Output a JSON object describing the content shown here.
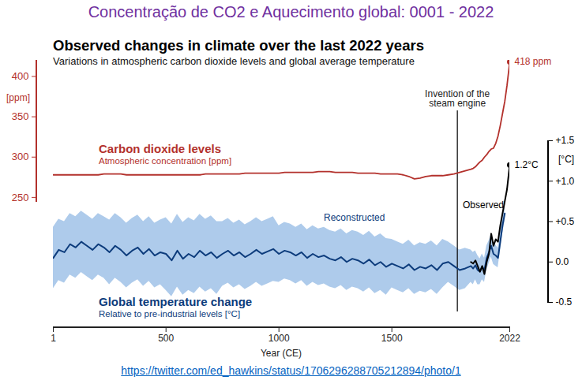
{
  "chart_data": {
    "type": "line",
    "heading": "Concentração de CO2 e Aquecimento global: 0001 - 2022",
    "title": "Observed changes in climate over the last 2022 years",
    "subtitle": "Variations in atmospheric carbon dioxide levels and global average temperature",
    "source": "https://twitter.com/ed_hawkins/status/1706296288705212894/photo/1",
    "xlabel": "Year (CE)",
    "xlim": [
      1,
      2022
    ],
    "xticks": [
      1,
      500,
      1000,
      1500,
      2022
    ],
    "ylim": [
      245,
      420
    ],
    "yticks": [
      250,
      300,
      350,
      400
    ],
    "ylabel": "[ppm]",
    "y_subtitle": "Atmospheric concentration [ppm]",
    "y2lim": [
      -0.5,
      1.5
    ],
    "y2ticks": [
      -0.5,
      {
        "value": 0,
        "label": "0.0"
      },
      {
        "value": 0.5,
        "label": "+0.5"
      },
      {
        "value": 1,
        "label": "+1.0"
      },
      {
        "value": 1.5,
        "label": "+1.5"
      }
    ],
    "y2label": "[°C]",
    "y2_title": "Global temperature change",
    "y2_subtitle": "Relative to pre-industrial levels [°C]",
    "x": [
      1,
      25,
      50,
      75,
      100,
      125,
      150,
      175,
      200,
      225,
      250,
      275,
      300,
      325,
      350,
      375,
      400,
      425,
      450,
      475,
      500,
      525,
      550,
      575,
      600,
      625,
      650,
      675,
      700,
      725,
      750,
      775,
      800,
      825,
      850,
      875,
      900,
      925,
      950,
      975,
      1000,
      1025,
      1050,
      1075,
      1100,
      1125,
      1150,
      1175,
      1200,
      1225,
      1250,
      1275,
      1300,
      1325,
      1350,
      1375,
      1400,
      1425,
      1450,
      1475,
      1500,
      1525,
      1550,
      1575,
      1600,
      1625,
      1650,
      1675,
      1700,
      1725,
      1750,
      1775,
      1800,
      1825,
      1850,
      1860,
      1870,
      1880,
      1890,
      1900,
      1910,
      1920,
      1930,
      1940,
      1950,
      1960,
      1970,
      1980,
      1990,
      2000,
      2010,
      2020,
      2022
    ],
    "series": [
      {
        "name": "Carbon dioxide levels",
        "color": "#b3312c",
        "values": [
          278,
          278,
          278,
          278,
          278,
          278,
          278,
          278,
          278,
          279,
          279,
          279,
          279,
          278,
          278,
          278,
          278,
          278,
          278,
          278,
          278,
          278,
          278,
          278,
          278,
          278,
          278,
          279,
          279,
          279,
          279,
          279,
          279,
          279,
          280,
          280,
          280,
          280,
          280,
          280,
          280,
          281,
          281,
          281,
          281,
          281,
          281,
          282,
          282,
          282,
          281,
          281,
          281,
          281,
          280,
          280,
          280,
          280,
          279,
          279,
          279,
          279,
          278,
          276,
          273,
          274,
          276,
          277,
          277,
          277,
          278,
          279,
          281,
          283,
          285,
          286,
          288,
          291,
          294,
          296,
          300,
          303,
          307,
          310,
          311,
          317,
          326,
          339,
          354,
          369,
          389,
          413,
          418
        ],
        "value_labels": [
          null,
          null,
          null,
          null,
          null,
          null,
          null,
          null,
          null,
          null,
          null,
          null,
          null,
          null,
          null,
          null,
          null,
          null,
          null,
          null,
          null,
          null,
          null,
          null,
          null,
          null,
          null,
          null,
          null,
          null,
          null,
          null,
          null,
          null,
          null,
          null,
          null,
          null,
          null,
          null,
          null,
          null,
          null,
          null,
          null,
          null,
          null,
          null,
          null,
          null,
          null,
          null,
          null,
          null,
          null,
          null,
          null,
          null,
          null,
          null,
          null,
          null,
          null,
          null,
          null,
          null,
          null,
          null,
          null,
          null,
          null,
          null,
          null,
          null,
          null,
          null,
          null,
          null,
          null,
          null,
          null,
          null,
          null,
          null,
          null,
          null,
          null,
          null,
          null,
          null,
          null,
          null,
          "418 ppm"
        ]
      },
      {
        "name": "Reconstructed",
        "color": "#0d3c7c",
        "axis": "y2",
        "values": [
          0.05,
          0.15,
          0.12,
          0.22,
          0.18,
          0.25,
          0.2,
          0.15,
          0.22,
          0.18,
          0.12,
          0.2,
          0.15,
          0.08,
          0.14,
          0.18,
          0.1,
          0.16,
          0.08,
          0.12,
          0.1,
          0.02,
          0.14,
          0.04,
          0.1,
          0.06,
          0.14,
          0.08,
          0.12,
          0.05,
          0.1,
          0.14,
          0.08,
          0.12,
          0.06,
          0.1,
          0.15,
          0.1,
          0.13,
          0.16,
          0.1,
          0.14,
          0.12,
          0.08,
          0.12,
          0.05,
          0.1,
          0.06,
          0.08,
          0.04,
          0.02,
          0.06,
          0.0,
          0.04,
          0.02,
          -0.02,
          0.03,
          -0.04,
          0.0,
          -0.06,
          -0.02,
          -0.05,
          -0.08,
          -0.03,
          -0.1,
          -0.06,
          -0.08,
          -0.04,
          -0.1,
          -0.02,
          0.0,
          -0.05,
          -0.1,
          -0.08,
          -0.05,
          -0.08,
          -0.04,
          -0.1,
          -0.12,
          -0.06,
          -0.1,
          0.05,
          0.12,
          0.2,
          0.1,
          0.08,
          0.05,
          0.25,
          0.45,
          0.6,
          null,
          null,
          null
        ],
        "lower": [
          -0.33,
          -0.23,
          -0.26,
          -0.16,
          -0.2,
          -0.13,
          -0.18,
          -0.23,
          -0.16,
          -0.2,
          -0.28,
          -0.2,
          -0.25,
          -0.32,
          -0.26,
          -0.22,
          -0.3,
          -0.24,
          -0.32,
          -0.28,
          -0.35,
          -0.43,
          -0.31,
          -0.41,
          -0.35,
          -0.39,
          -0.31,
          -0.37,
          -0.33,
          -0.4,
          -0.3,
          -0.26,
          -0.32,
          -0.28,
          -0.34,
          -0.3,
          -0.25,
          -0.3,
          -0.27,
          -0.24,
          -0.25,
          -0.21,
          -0.23,
          -0.27,
          -0.23,
          -0.3,
          -0.25,
          -0.29,
          -0.27,
          -0.31,
          -0.33,
          -0.29,
          -0.35,
          -0.31,
          -0.33,
          -0.37,
          -0.32,
          -0.39,
          -0.35,
          -0.41,
          -0.32,
          -0.35,
          -0.38,
          -0.33,
          -0.4,
          -0.36,
          -0.38,
          -0.34,
          -0.4,
          -0.32,
          -0.25,
          -0.3,
          -0.35,
          -0.33,
          -0.25,
          -0.28,
          -0.22,
          -0.28,
          -0.28,
          -0.22,
          -0.25,
          -0.1,
          -0.02,
          0.06,
          -0.03,
          -0.05,
          -0.07,
          0.13,
          0.34,
          0.5,
          null,
          null,
          null
        ],
        "upper": [
          0.43,
          0.53,
          0.5,
          0.6,
          0.56,
          0.63,
          0.58,
          0.53,
          0.6,
          0.56,
          0.52,
          0.6,
          0.55,
          0.48,
          0.54,
          0.58,
          0.5,
          0.56,
          0.48,
          0.52,
          0.55,
          0.47,
          0.59,
          0.49,
          0.55,
          0.51,
          0.59,
          0.53,
          0.57,
          0.5,
          0.5,
          0.54,
          0.48,
          0.52,
          0.46,
          0.5,
          0.55,
          0.5,
          0.53,
          0.56,
          0.45,
          0.49,
          0.47,
          0.43,
          0.47,
          0.4,
          0.45,
          0.41,
          0.43,
          0.39,
          0.37,
          0.41,
          0.35,
          0.39,
          0.37,
          0.33,
          0.38,
          0.31,
          0.35,
          0.29,
          0.28,
          0.25,
          0.22,
          0.27,
          0.2,
          0.24,
          0.22,
          0.26,
          0.2,
          0.28,
          0.25,
          0.2,
          0.15,
          0.17,
          0.15,
          0.12,
          0.14,
          0.08,
          0.04,
          0.1,
          0.05,
          0.2,
          0.26,
          0.34,
          0.23,
          0.21,
          0.17,
          0.37,
          0.56,
          0.7,
          null,
          null,
          null
        ]
      },
      {
        "name": "Observed",
        "color": "#000000",
        "axis": "y2",
        "values": [
          null,
          null,
          null,
          null,
          null,
          null,
          null,
          null,
          null,
          null,
          null,
          null,
          null,
          null,
          null,
          null,
          null,
          null,
          null,
          null,
          null,
          null,
          null,
          null,
          null,
          null,
          null,
          null,
          null,
          null,
          null,
          null,
          null,
          null,
          null,
          null,
          null,
          null,
          null,
          null,
          null,
          null,
          null,
          null,
          null,
          null,
          null,
          null,
          null,
          null,
          null,
          null,
          null,
          null,
          null,
          null,
          null,
          null,
          null,
          null,
          null,
          null,
          null,
          null,
          null,
          null,
          null,
          null,
          null,
          null,
          null,
          null,
          null,
          null,
          0.0,
          -0.02,
          0.02,
          -0.05,
          -0.12,
          -0.05,
          -0.15,
          0.0,
          0.1,
          0.35,
          0.2,
          0.28,
          0.25,
          0.45,
          0.6,
          0.75,
          0.9,
          1.15,
          1.2
        ],
        "value_labels": [
          null,
          null,
          null,
          null,
          null,
          null,
          null,
          null,
          null,
          null,
          null,
          null,
          null,
          null,
          null,
          null,
          null,
          null,
          null,
          null,
          null,
          null,
          null,
          null,
          null,
          null,
          null,
          null,
          null,
          null,
          null,
          null,
          null,
          null,
          null,
          null,
          null,
          null,
          null,
          null,
          null,
          null,
          null,
          null,
          null,
          null,
          null,
          null,
          null,
          null,
          null,
          null,
          null,
          null,
          null,
          null,
          null,
          null,
          null,
          null,
          null,
          null,
          null,
          null,
          null,
          null,
          null,
          null,
          null,
          null,
          null,
          null,
          null,
          null,
          null,
          null,
          null,
          null,
          null,
          null,
          null,
          null,
          null,
          null,
          null,
          null,
          null,
          null,
          null,
          null,
          null,
          null,
          "1.2°C"
        ]
      }
    ],
    "annotations": [
      {
        "text": "Invention of the\nsteam engine",
        "x": 1790,
        "line_style": "dashed"
      }
    ]
  }
}
